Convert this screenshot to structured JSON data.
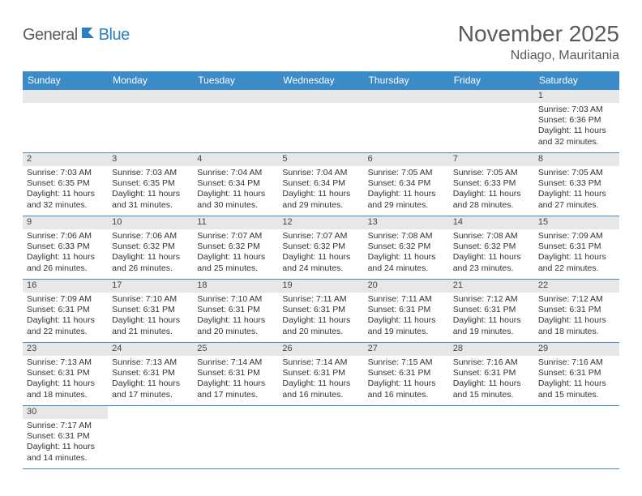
{
  "brand": {
    "part1": "General",
    "part2": "Blue"
  },
  "title": "November 2025",
  "location": "Ndiago, Mauritania",
  "header_bg": "#3b8bc9",
  "header_text_color": "#ffffff",
  "daynum_bg": "#e7e7e7",
  "border_color": "#3b8bc9",
  "days": [
    "Sunday",
    "Monday",
    "Tuesday",
    "Wednesday",
    "Thursday",
    "Friday",
    "Saturday"
  ],
  "weeks": [
    [
      null,
      null,
      null,
      null,
      null,
      null,
      {
        "n": "1",
        "sunrise": "7:03 AM",
        "sunset": "6:36 PM",
        "daylight": "11 hours and 32 minutes."
      }
    ],
    [
      {
        "n": "2",
        "sunrise": "7:03 AM",
        "sunset": "6:35 PM",
        "daylight": "11 hours and 32 minutes."
      },
      {
        "n": "3",
        "sunrise": "7:03 AM",
        "sunset": "6:35 PM",
        "daylight": "11 hours and 31 minutes."
      },
      {
        "n": "4",
        "sunrise": "7:04 AM",
        "sunset": "6:34 PM",
        "daylight": "11 hours and 30 minutes."
      },
      {
        "n": "5",
        "sunrise": "7:04 AM",
        "sunset": "6:34 PM",
        "daylight": "11 hours and 29 minutes."
      },
      {
        "n": "6",
        "sunrise": "7:05 AM",
        "sunset": "6:34 PM",
        "daylight": "11 hours and 29 minutes."
      },
      {
        "n": "7",
        "sunrise": "7:05 AM",
        "sunset": "6:33 PM",
        "daylight": "11 hours and 28 minutes."
      },
      {
        "n": "8",
        "sunrise": "7:05 AM",
        "sunset": "6:33 PM",
        "daylight": "11 hours and 27 minutes."
      }
    ],
    [
      {
        "n": "9",
        "sunrise": "7:06 AM",
        "sunset": "6:33 PM",
        "daylight": "11 hours and 26 minutes."
      },
      {
        "n": "10",
        "sunrise": "7:06 AM",
        "sunset": "6:32 PM",
        "daylight": "11 hours and 26 minutes."
      },
      {
        "n": "11",
        "sunrise": "7:07 AM",
        "sunset": "6:32 PM",
        "daylight": "11 hours and 25 minutes."
      },
      {
        "n": "12",
        "sunrise": "7:07 AM",
        "sunset": "6:32 PM",
        "daylight": "11 hours and 24 minutes."
      },
      {
        "n": "13",
        "sunrise": "7:08 AM",
        "sunset": "6:32 PM",
        "daylight": "11 hours and 24 minutes."
      },
      {
        "n": "14",
        "sunrise": "7:08 AM",
        "sunset": "6:32 PM",
        "daylight": "11 hours and 23 minutes."
      },
      {
        "n": "15",
        "sunrise": "7:09 AM",
        "sunset": "6:31 PM",
        "daylight": "11 hours and 22 minutes."
      }
    ],
    [
      {
        "n": "16",
        "sunrise": "7:09 AM",
        "sunset": "6:31 PM",
        "daylight": "11 hours and 22 minutes."
      },
      {
        "n": "17",
        "sunrise": "7:10 AM",
        "sunset": "6:31 PM",
        "daylight": "11 hours and 21 minutes."
      },
      {
        "n": "18",
        "sunrise": "7:10 AM",
        "sunset": "6:31 PM",
        "daylight": "11 hours and 20 minutes."
      },
      {
        "n": "19",
        "sunrise": "7:11 AM",
        "sunset": "6:31 PM",
        "daylight": "11 hours and 20 minutes."
      },
      {
        "n": "20",
        "sunrise": "7:11 AM",
        "sunset": "6:31 PM",
        "daylight": "11 hours and 19 minutes."
      },
      {
        "n": "21",
        "sunrise": "7:12 AM",
        "sunset": "6:31 PM",
        "daylight": "11 hours and 19 minutes."
      },
      {
        "n": "22",
        "sunrise": "7:12 AM",
        "sunset": "6:31 PM",
        "daylight": "11 hours and 18 minutes."
      }
    ],
    [
      {
        "n": "23",
        "sunrise": "7:13 AM",
        "sunset": "6:31 PM",
        "daylight": "11 hours and 18 minutes."
      },
      {
        "n": "24",
        "sunrise": "7:13 AM",
        "sunset": "6:31 PM",
        "daylight": "11 hours and 17 minutes."
      },
      {
        "n": "25",
        "sunrise": "7:14 AM",
        "sunset": "6:31 PM",
        "daylight": "11 hours and 17 minutes."
      },
      {
        "n": "26",
        "sunrise": "7:14 AM",
        "sunset": "6:31 PM",
        "daylight": "11 hours and 16 minutes."
      },
      {
        "n": "27",
        "sunrise": "7:15 AM",
        "sunset": "6:31 PM",
        "daylight": "11 hours and 16 minutes."
      },
      {
        "n": "28",
        "sunrise": "7:16 AM",
        "sunset": "6:31 PM",
        "daylight": "11 hours and 15 minutes."
      },
      {
        "n": "29",
        "sunrise": "7:16 AM",
        "sunset": "6:31 PM",
        "daylight": "11 hours and 15 minutes."
      }
    ],
    [
      {
        "n": "30",
        "sunrise": "7:17 AM",
        "sunset": "6:31 PM",
        "daylight": "11 hours and 14 minutes."
      },
      null,
      null,
      null,
      null,
      null,
      null
    ]
  ],
  "labels": {
    "sunrise": "Sunrise:",
    "sunset": "Sunset:",
    "daylight": "Daylight:"
  }
}
